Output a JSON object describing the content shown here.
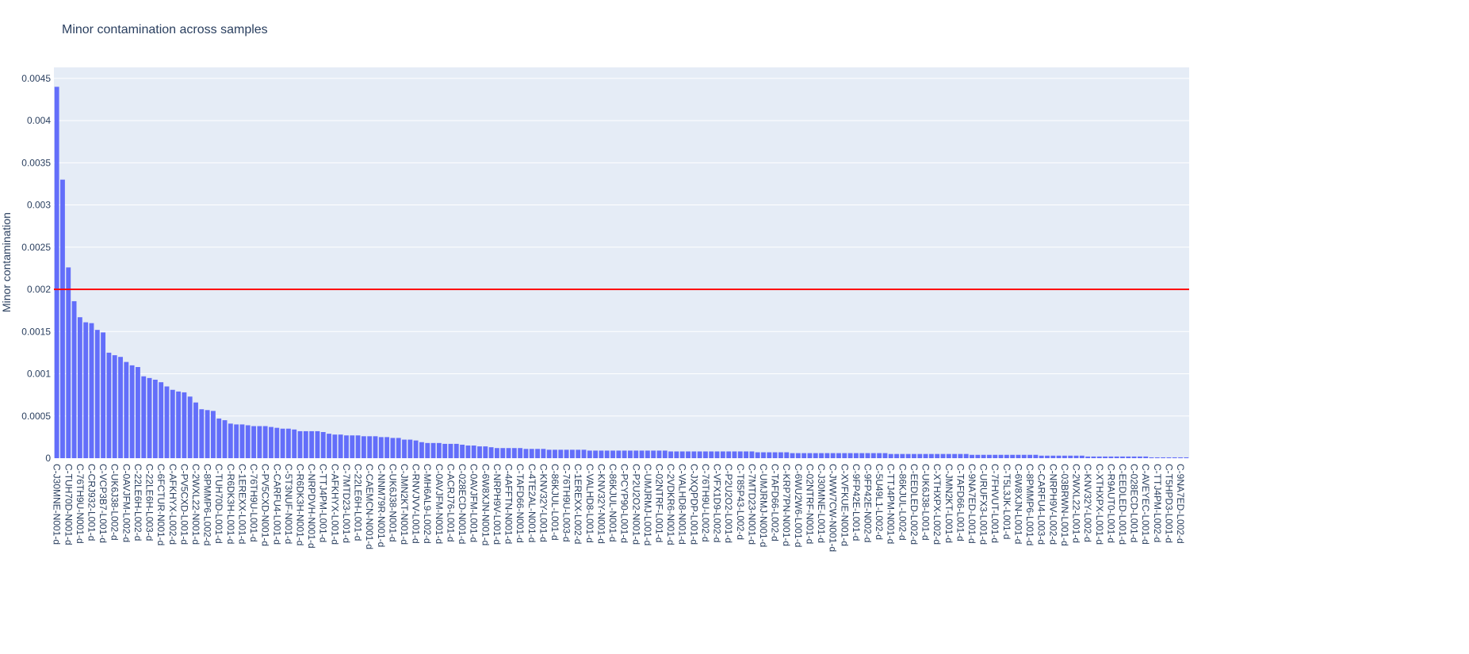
{
  "chart_data": {
    "type": "bar",
    "title": "Minor contamination across samples",
    "y_label": "Minor contamination",
    "color": "#636efa",
    "grid": true,
    "hline": {
      "value": 0.002,
      "color": "#ff0000"
    },
    "ylim": [
      0,
      0.00463
    ],
    "yticks": [
      0,
      0.0005,
      0.001,
      0.0015,
      0.002,
      0.0025,
      0.003,
      0.0035,
      0.004,
      0.0045
    ],
    "categories": [
      "C-J30MNE-N001-d",
      null,
      "C-TUH70D-N001-d",
      null,
      "C-76TH9U-N001-d",
      null,
      "C-CRJ932-L001-d",
      null,
      "C-VCP3B7-L001-d",
      null,
      "C-UK6J38-L002-d",
      null,
      "C-0AVJFM-L002-d",
      null,
      "C-22LE6H-L002-d",
      null,
      "C-22LE6H-L003-d",
      null,
      "C-6FCTUR-N001-d",
      null,
      "C-AFKHYX-L002-d",
      null,
      "C-PV5CXD-L001-d",
      null,
      "C-2WXL22-N001-d",
      null,
      "C-8PMMP6-L002-d",
      null,
      "C-TUH70D-L001-d",
      null,
      "C-R6DK3H-L001-d",
      null,
      "C-1EREXX-L001-d",
      null,
      "C-76TH9U-L001-d",
      null,
      "C-PV5CXD-N001-d",
      null,
      "C-CARFU4-L001-d",
      null,
      "C-5T3NUF-N001-d",
      null,
      "C-R6DK3H-N001-d",
      null,
      "C-NRPDVH-N001-d",
      null,
      "C-TTJ4PM-L001-d",
      null,
      "C-AFKHYX-L001-d",
      null,
      "C-7MTD23-L001-d",
      null,
      "C-22LE6H-L001-d",
      null,
      "C-CAEMCN-N001-d",
      null,
      "C-NNM79R-N001-d",
      null,
      "C-UK6J38-N001-d",
      null,
      "C-JMN2KT-N001-d",
      null,
      "C-RNVJVV-L001-d",
      null,
      "C-MH6AL9-L002-d",
      null,
      "C-0AVJFM-N001-d",
      null,
      "C-ACRJ76-L001-d",
      null,
      "C-028ECD-N001-d",
      null,
      "C-0AVJFM-L001-d",
      null,
      "C-6W8XJN-N001-d",
      null,
      "C-NRPH9V-L001-d",
      null,
      "C-4AFFTN-N001-d",
      null,
      "C-TAFD66-N001-d",
      null,
      "C-4TE2AL-N001-d",
      null,
      "C-KNV32Y-L001-d",
      null,
      "C-86KJUL-L001-d",
      null,
      "C-76TH9U-L003-d",
      null,
      "C-1EREXX-L002-d",
      null,
      "C-VALHD8-L001-d",
      null,
      "C-KNV32Y-N001-d",
      null,
      "C-86KJUL-N001-d",
      null,
      "C-PCYP90-L001-d",
      null,
      "C-P2U2O2-N001-d",
      null,
      "C-UMJRMJ-L001-d",
      null,
      "C-02NTRF-L001-d",
      null,
      "C-2VDKR6-N001-d",
      null,
      "C-VALHD8-N001-d",
      null,
      "C-JXQPDP-L001-d",
      null,
      "C-76TH9U-L002-d",
      null,
      "C-VFX1D9-L002-d",
      null,
      "C-P2U2O2-L001-d",
      null,
      "C-T85P43-L002-d",
      null,
      "C-7MTD23-N001-d",
      null,
      "C-UMJRMJ-N001-d",
      null,
      "C-TAFD66-L002-d",
      null,
      "C-KRP7PN-N001-d",
      null,
      "C-6WU2W6-L001-d",
      null,
      "C-02NTRF-N001-d",
      null,
      "C-J30MNE-L001-d",
      null,
      "C-JWW7CW-N001-d",
      null,
      "C-XVFKUE-N001-d",
      null,
      "C-9FP42E-L001-d",
      null,
      "C-9FP42E-N002-d",
      null,
      "C-5U49L1-L002-d",
      null,
      "C-TTJ4PM-N001-d",
      null,
      "C-86KJUL-L002-d",
      null,
      "C-EEDLED-L002-d",
      null,
      "C-UK6J38-L001-d",
      null,
      "C-XTHXPX-L002-d",
      null,
      "C-JMN2KT-L001-d",
      null,
      "C-TAFD66-L001-d",
      null,
      "C-9NA7ED-L001-d",
      null,
      "C-URUFX3-L001-d",
      null,
      "C-7FHVUT-L001-d",
      null,
      "C-T5L3JK-L001-d",
      null,
      "C-6W8XJN-L001-d",
      null,
      "C-8PMMP6-L001-d",
      null,
      "C-CARFU4-L003-d",
      null,
      "C-NRPH9V-L002-d",
      null,
      "C-03BRWN-L001-d",
      null,
      "C-2WXL22-L001-d",
      null,
      "C-KNV32Y-L002-d",
      null,
      "C-XTHXPX-L001-d",
      null,
      "C-R9AUT0-L001-d",
      null,
      "C-EEDLED-L001-d",
      null,
      "C-028ECD-L001-d",
      null,
      "C-AVEYEC-L001-d",
      null,
      "C-TTJ4PM-L002-d",
      null,
      "C-T5HPD3-L001-d",
      null,
      "C-9NA7ED-L002-d",
      null
    ],
    "values": [
      0.0044,
      0.0033,
      0.00226,
      0.00186,
      0.00167,
      0.00161,
      0.0016,
      0.00152,
      0.00149,
      0.00125,
      0.00122,
      0.0012,
      0.00114,
      0.0011,
      0.00108,
      0.00097,
      0.00095,
      0.00093,
      0.0009,
      0.00085,
      0.00081,
      0.00079,
      0.00078,
      0.00073,
      0.00066,
      0.00058,
      0.00057,
      0.00056,
      0.00047,
      0.00045,
      0.00041,
      0.0004,
      0.0004,
      0.00039,
      0.00038,
      0.00038,
      0.00038,
      0.00037,
      0.00036,
      0.00035,
      0.00035,
      0.00034,
      0.00032,
      0.00032,
      0.00032,
      0.00032,
      0.00031,
      0.00029,
      0.00028,
      0.00028,
      0.00027,
      0.00027,
      0.00027,
      0.00026,
      0.00026,
      0.00026,
      0.00025,
      0.00025,
      0.00024,
      0.00024,
      0.00022,
      0.00022,
      0.00021,
      0.00019,
      0.00018,
      0.00018,
      0.00018,
      0.00017,
      0.00017,
      0.00017,
      0.00016,
      0.00015,
      0.00015,
      0.00014,
      0.00014,
      0.00013,
      0.00012,
      0.00012,
      0.00012,
      0.00012,
      0.00012,
      0.00011,
      0.00011,
      0.00011,
      0.00011,
      0.0001,
      0.0001,
      0.0001,
      0.0001,
      0.0001,
      0.0001,
      0.0001,
      9e-05,
      9e-05,
      9e-05,
      9e-05,
      9e-05,
      9e-05,
      9e-05,
      9e-05,
      9e-05,
      9e-05,
      9e-05,
      9e-05,
      9e-05,
      9e-05,
      8e-05,
      8e-05,
      8e-05,
      8e-05,
      8e-05,
      8e-05,
      8e-05,
      8e-05,
      8e-05,
      8e-05,
      8e-05,
      8e-05,
      8e-05,
      8e-05,
      8e-05,
      7e-05,
      7e-05,
      7e-05,
      7e-05,
      7e-05,
      7e-05,
      6e-05,
      6e-05,
      6e-05,
      6e-05,
      6e-05,
      6e-05,
      6e-05,
      6e-05,
      6e-05,
      6e-05,
      6e-05,
      6e-05,
      6e-05,
      6e-05,
      6e-05,
      6e-05,
      6e-05,
      5e-05,
      5e-05,
      5e-05,
      5e-05,
      5e-05,
      5e-05,
      5e-05,
      5e-05,
      5e-05,
      5e-05,
      5e-05,
      5e-05,
      5e-05,
      5e-05,
      4e-05,
      4e-05,
      4e-05,
      4e-05,
      4e-05,
      4e-05,
      4e-05,
      4e-05,
      4e-05,
      4e-05,
      4e-05,
      4e-05,
      3e-05,
      3e-05,
      3e-05,
      3e-05,
      3e-05,
      3e-05,
      3e-05,
      3e-05,
      2e-05,
      2e-05,
      2e-05,
      2e-05,
      2e-05,
      2e-05,
      2e-05,
      2e-05,
      2e-05,
      2e-05,
      2e-05,
      1e-05,
      1e-05,
      1e-05,
      1e-05,
      1e-05,
      1e-05,
      1e-05
    ]
  }
}
